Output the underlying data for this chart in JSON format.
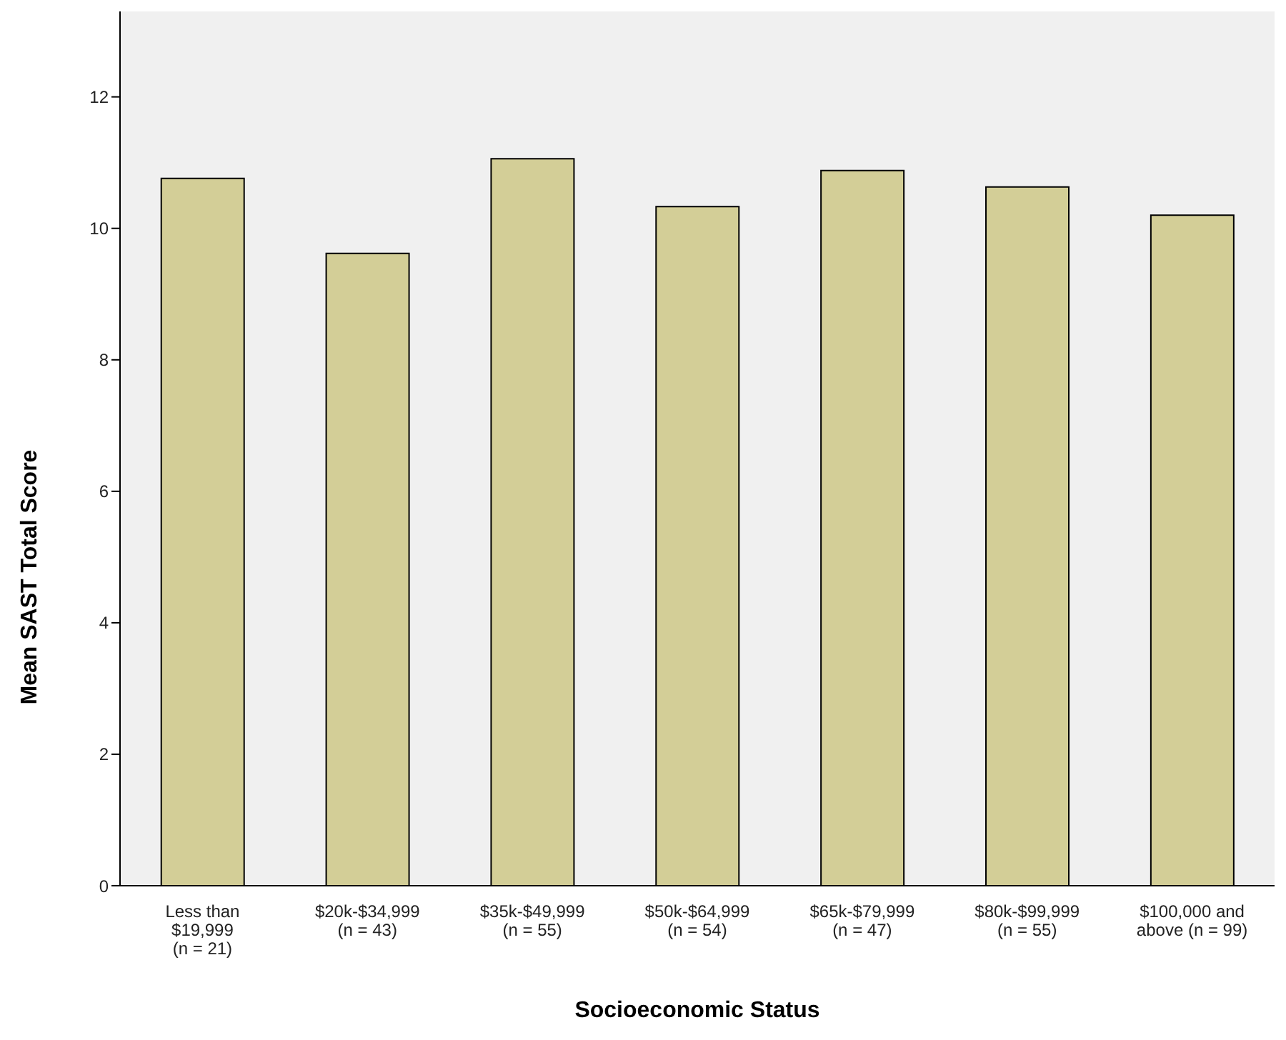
{
  "chart_data": {
    "type": "bar",
    "xlabel": "Socioeconomic Status",
    "ylabel": "Mean SAST Total Score",
    "categories": [
      "Less than\n$19,999\n(n = 21)",
      "$20k-$34,999\n(n = 43)",
      "$35k-$49,999\n(n = 55)",
      "$50k-$64,999\n(n = 54)",
      "$65k-$79,999\n(n = 47)",
      "$80k-$99,999\n(n = 55)",
      "$100,000 and\nabove (n = 99)"
    ],
    "values": [
      10.76,
      9.62,
      11.06,
      10.33,
      10.88,
      10.63,
      10.2
    ],
    "color": "#d3ce97",
    "ylim": [
      0,
      13.3
    ],
    "yticks": [
      0,
      2,
      4,
      6,
      8,
      10,
      12
    ]
  }
}
